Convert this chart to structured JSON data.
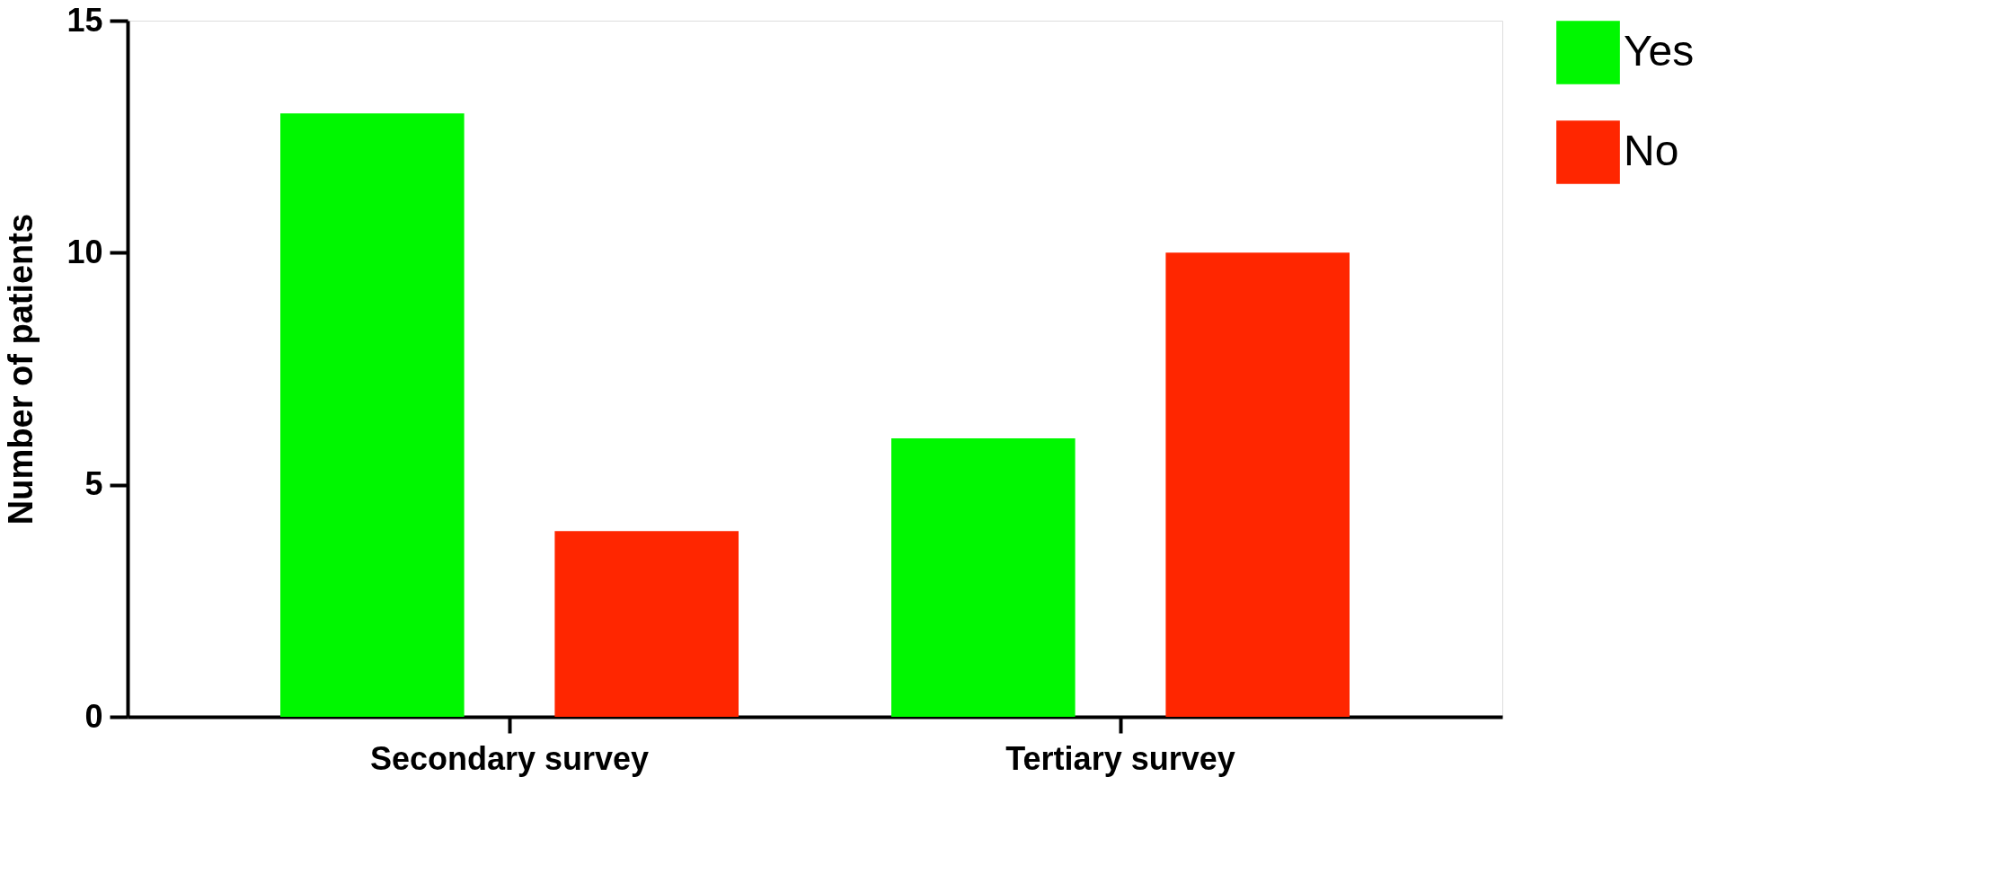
{
  "chart_data": {
    "type": "bar",
    "ylabel": "Number of patients",
    "categories": [
      "Secondary survey",
      "Tertiary survey"
    ],
    "series": [
      {
        "name": "Yes",
        "color": "#00f700",
        "values": [
          13,
          6
        ]
      },
      {
        "name": "No",
        "color": "#ff2600",
        "values": [
          4,
          10
        ]
      }
    ],
    "ylim": [
      0,
      15
    ],
    "yticks": [
      0,
      5,
      10,
      15
    ],
    "grid": false,
    "legend": "right"
  }
}
